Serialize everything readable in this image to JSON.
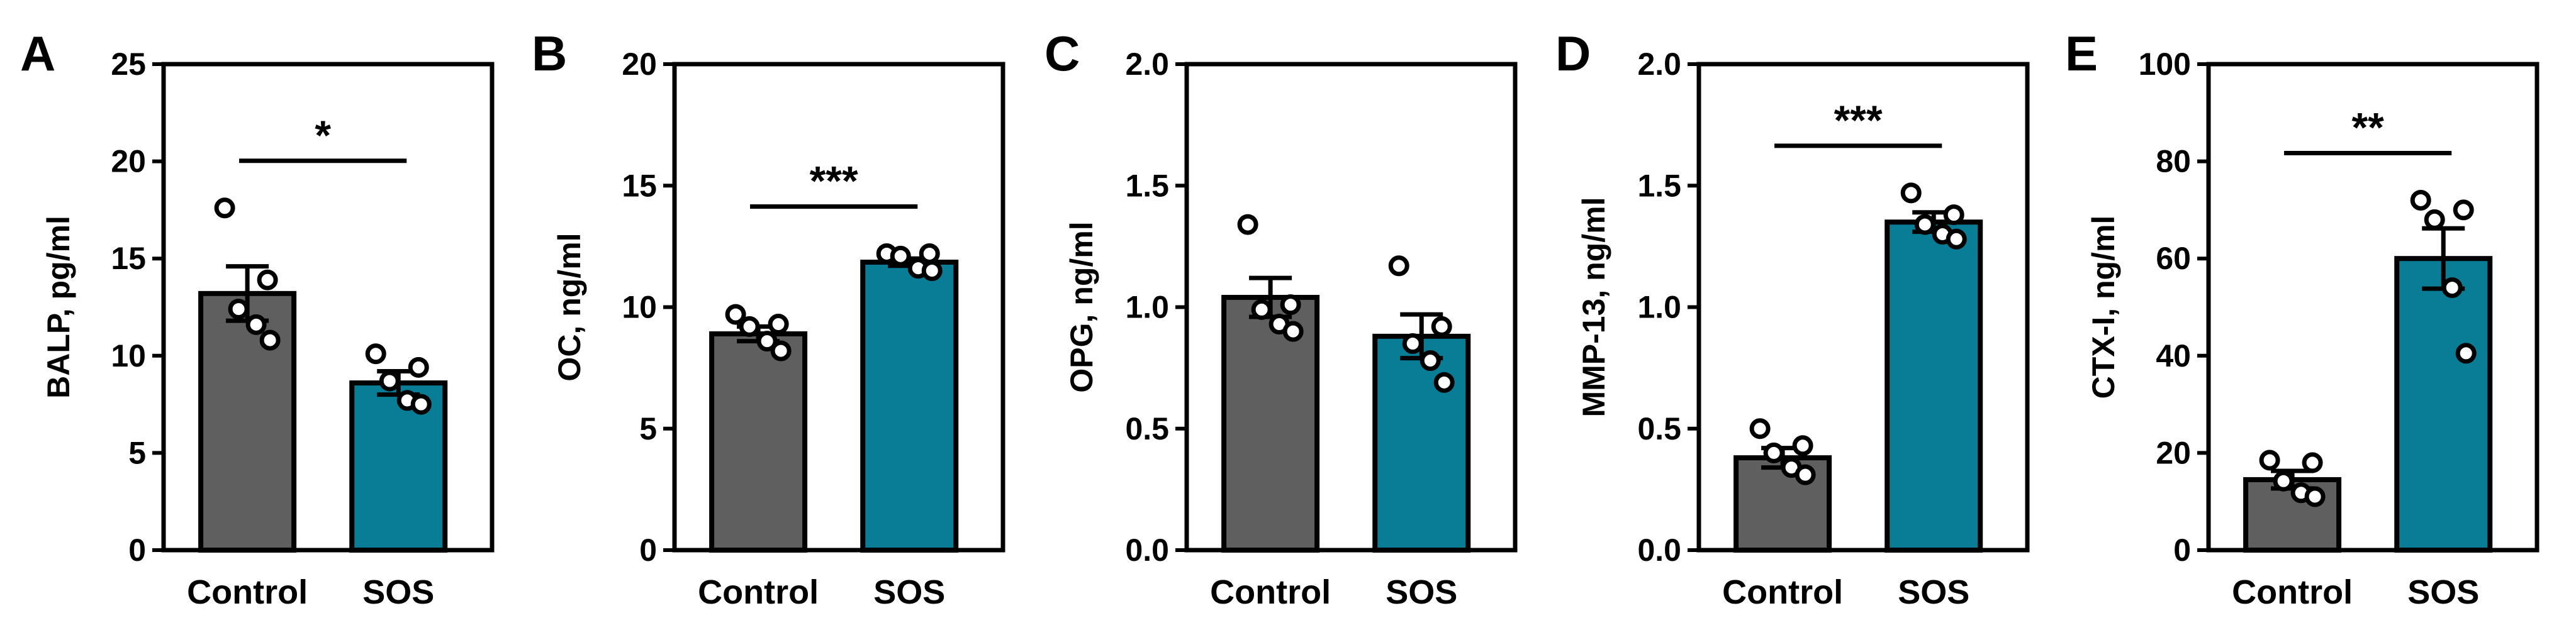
{
  "colors": {
    "control": "#5f5f5f",
    "sos": "#087d95",
    "ink": "#000000",
    "point_fill": "#ffffff"
  },
  "chart_data": [
    {
      "panel": "A",
      "type": "bar",
      "categories": [
        "Control",
        "SOS"
      ],
      "ylabel": "BALP, pg/ml",
      "ylim": [
        0,
        25
      ],
      "yticks": [
        "0",
        "5",
        "10",
        "15",
        "20",
        "25"
      ],
      "values": [
        13.2,
        8.6
      ],
      "sem": [
        1.4,
        0.6
      ],
      "points": [
        [
          17.6,
          13.9,
          12.4,
          11.6,
          10.8
        ],
        [
          10.1,
          9.4,
          8.7,
          7.7,
          7.5
        ]
      ],
      "significance": "*"
    },
    {
      "panel": "B",
      "type": "bar",
      "categories": [
        "Control",
        "SOS"
      ],
      "ylabel": "OC, ng/ml",
      "ylim": [
        0,
        20
      ],
      "yticks": [
        "0",
        "5",
        "10",
        "15",
        "20"
      ],
      "values": [
        8.9,
        11.85
      ],
      "sem": [
        0.3,
        0.15
      ],
      "points": [
        [
          9.7,
          9.3,
          9.2,
          8.6,
          8.2
        ],
        [
          12.2,
          12.2,
          12.1,
          11.6,
          11.5
        ]
      ],
      "significance": "***"
    },
    {
      "panel": "C",
      "type": "bar",
      "categories": [
        "Control",
        "SOS"
      ],
      "ylabel": "OPG, ng/ml",
      "ylim": [
        0,
        2.0
      ],
      "yticks": [
        "0.0",
        "0.5",
        "1.0",
        "1.5",
        "2.0"
      ],
      "values": [
        1.04,
        0.88
      ],
      "sem": [
        0.08,
        0.09
      ],
      "points": [
        [
          1.34,
          1.01,
          0.99,
          0.93,
          0.9
        ],
        [
          1.17,
          0.92,
          0.85,
          0.78,
          0.69
        ]
      ],
      "significance": ""
    },
    {
      "panel": "D",
      "type": "bar",
      "categories": [
        "Control",
        "SOS"
      ],
      "ylabel": "MMP-13, ng/ml",
      "ylim": [
        0,
        2.0
      ],
      "yticks": [
        "0.0",
        "0.5",
        "1.0",
        "1.5",
        "2.0"
      ],
      "values": [
        0.38,
        1.35
      ],
      "sem": [
        0.04,
        0.04
      ],
      "points": [
        [
          0.5,
          0.43,
          0.4,
          0.34,
          0.31
        ],
        [
          1.47,
          1.38,
          1.34,
          1.3,
          1.28
        ]
      ],
      "significance": "***"
    },
    {
      "panel": "E",
      "type": "bar",
      "categories": [
        "Control",
        "SOS"
      ],
      "ylabel": "CTX-I, ng/ml",
      "ylim": [
        0,
        100
      ],
      "yticks": [
        "0",
        "20",
        "40",
        "60",
        "80",
        "100"
      ],
      "values": [
        14.5,
        60
      ],
      "sem": [
        1.8,
        6.2
      ],
      "points": [
        [
          18.5,
          18.0,
          14.2,
          11.8,
          11.0
        ],
        [
          72,
          70,
          68,
          54,
          40.5
        ]
      ],
      "significance": "**"
    }
  ]
}
